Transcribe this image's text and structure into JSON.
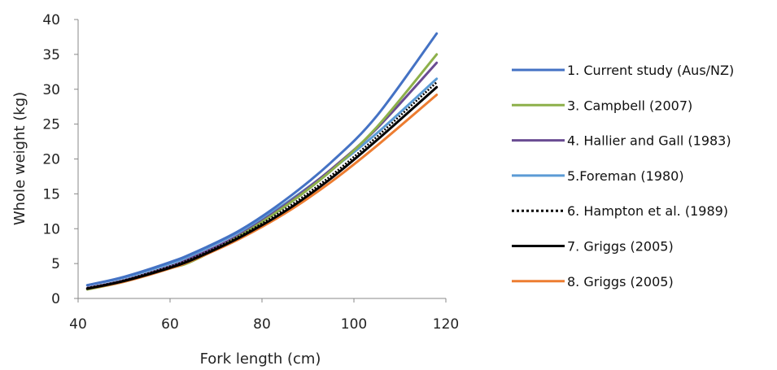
{
  "chart_data": {
    "type": "line",
    "xlabel": "Fork length (cm)",
    "ylabel": "Whole weight (kg)",
    "xlim": [
      40,
      120
    ],
    "ylim": [
      0,
      40
    ],
    "x_ticks": [
      40,
      60,
      80,
      100,
      120
    ],
    "y_ticks": [
      0,
      5,
      10,
      15,
      20,
      25,
      30,
      35,
      40
    ],
    "grid": false,
    "legend_position": "right",
    "x": [
      42,
      50,
      60,
      65,
      75,
      85,
      95,
      105,
      118
    ],
    "series": [
      {
        "name": "1. Current study (Aus/NZ)",
        "color": "#4472C4",
        "dash": "solid",
        "values": [
          1.9,
          3.1,
          5.2,
          6.5,
          9.7,
          14.1,
          19.5,
          26.2,
          38.0
        ]
      },
      {
        "name": "3. Campbell (2007)",
        "color": "#8DB04A",
        "dash": "solid",
        "values": [
          1.3,
          2.4,
          4.3,
          5.4,
          8.9,
          13.2,
          18.3,
          24.6,
          35.0
        ]
      },
      {
        "name": "4. Hallier and Gall (1983)",
        "color": "#6A4C93",
        "dash": "solid",
        "values": [
          1.5,
          2.6,
          4.6,
          5.9,
          9.1,
          13.4,
          18.5,
          24.4,
          33.8
        ]
      },
      {
        "name": "5.Foreman (1980)",
        "color": "#5B9BD5",
        "dash": "solid",
        "values": [
          1.9,
          3.0,
          5.0,
          6.3,
          9.5,
          13.6,
          18.4,
          23.7,
          31.5
        ]
      },
      {
        "name": "6. Hampton et al. (1989)",
        "color": "#000000",
        "dash": "dotted",
        "values": [
          1.5,
          2.6,
          4.6,
          5.8,
          8.9,
          12.8,
          17.6,
          23.2,
          31.0
        ]
      },
      {
        "name": "7. Griggs (2005)",
        "color": "#000000",
        "dash": "solid",
        "values": [
          1.4,
          2.5,
          4.4,
          5.6,
          8.7,
          12.5,
          17.2,
          22.7,
          30.3
        ]
      },
      {
        "name": "8. Griggs (2005)",
        "color": "#ED7D31",
        "dash": "solid",
        "values": [
          1.4,
          2.4,
          4.3,
          5.5,
          8.5,
          12.2,
          16.7,
          21.9,
          29.2
        ]
      }
    ]
  }
}
